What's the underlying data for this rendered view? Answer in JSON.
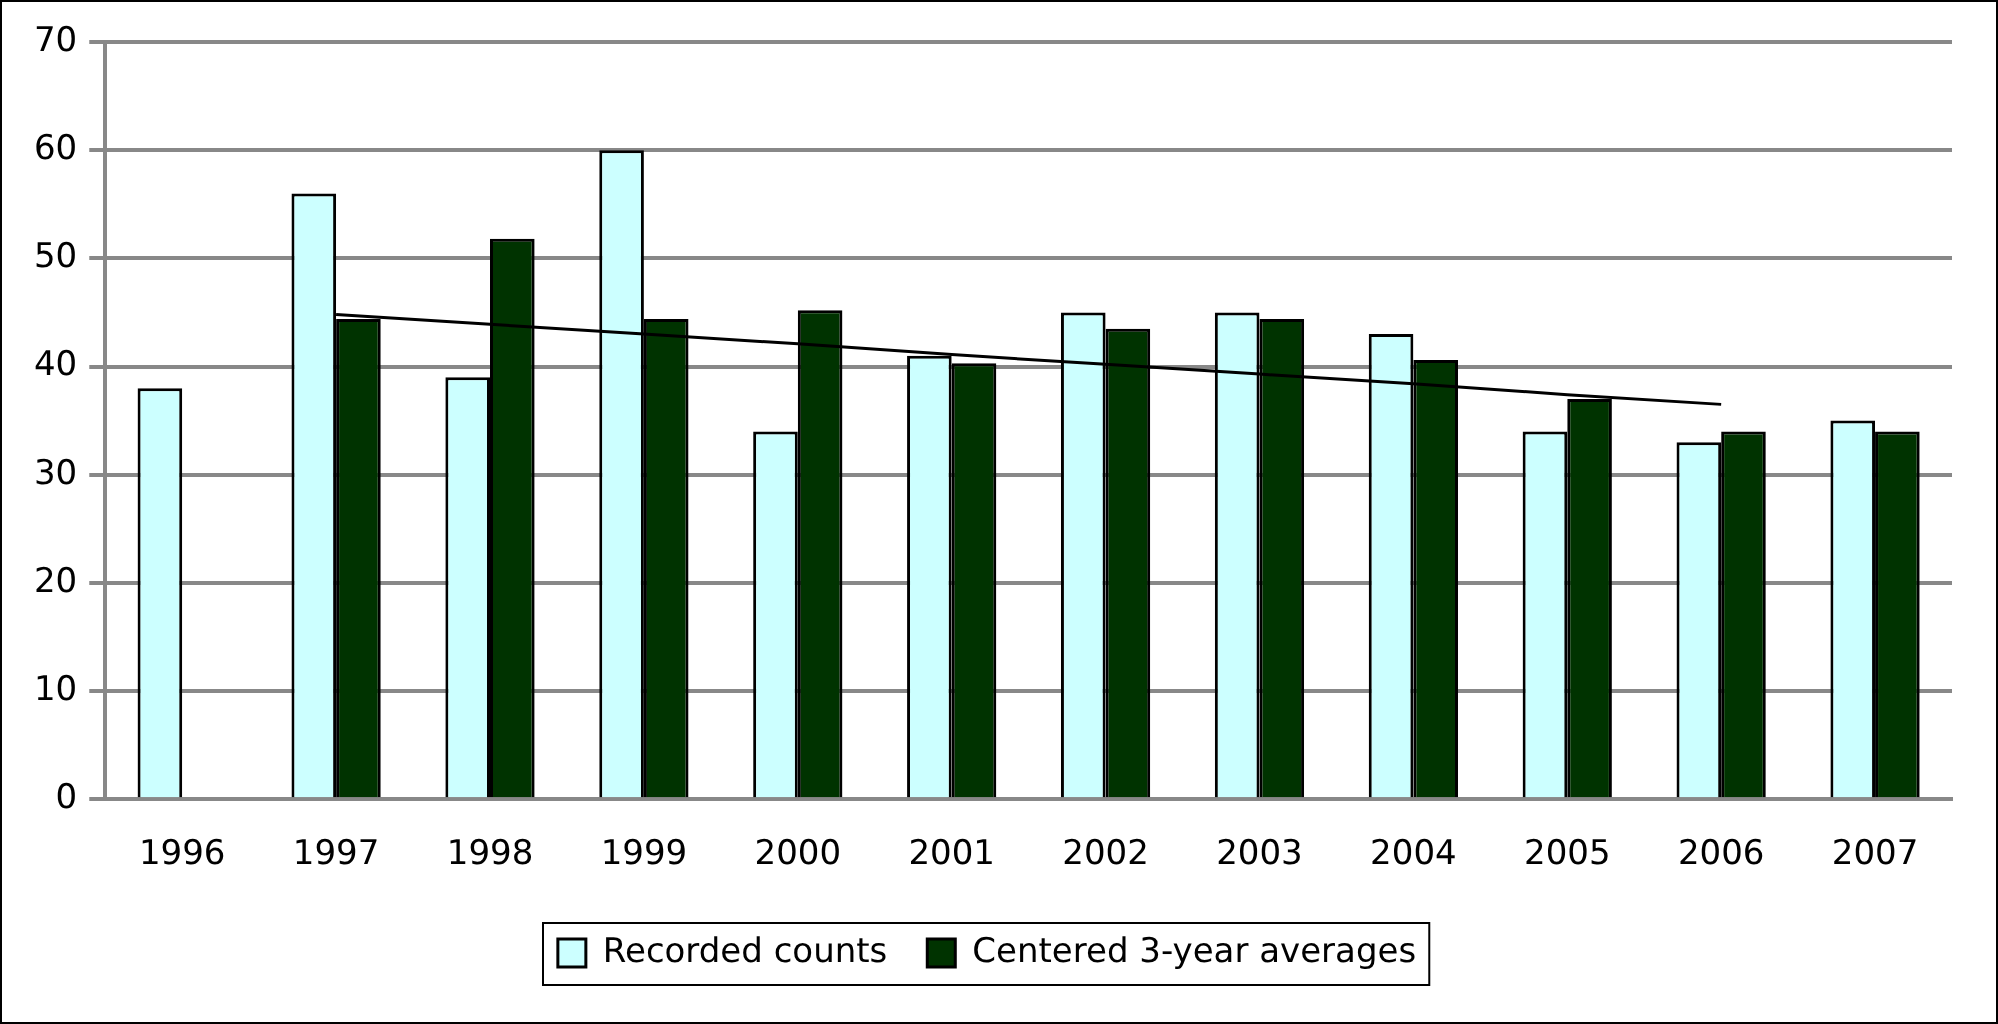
{
  "chart_data": {
    "type": "bar",
    "categories": [
      "1996",
      "1997",
      "1998",
      "1999",
      "2000",
      "2001",
      "2002",
      "2003",
      "2004",
      "2005",
      "2006",
      "2007"
    ],
    "series": [
      {
        "name": "Recorded counts",
        "color": "#ccffff",
        "values": [
          38,
          56,
          39,
          60,
          34,
          41,
          45,
          45,
          43,
          34,
          33,
          35
        ]
      },
      {
        "name": "Centered 3-year averages",
        "color": "#003300",
        "values": [
          null,
          44.4,
          51.8,
          44.4,
          45.2,
          40.3,
          43.5,
          44.4,
          40.6,
          37,
          34,
          34
        ]
      },
      {
        "type": "line",
        "color": "#000000",
        "values": [
          null,
          44.8,
          43.9,
          43.0,
          42.1,
          41.1,
          40.2,
          39.3,
          38.4,
          37.4,
          36.5,
          null
        ]
      }
    ],
    "ylim": [
      0,
      70
    ],
    "yticks": [
      0,
      10,
      20,
      30,
      40,
      50,
      60,
      70
    ],
    "grid": "y",
    "legend": "bottom"
  }
}
